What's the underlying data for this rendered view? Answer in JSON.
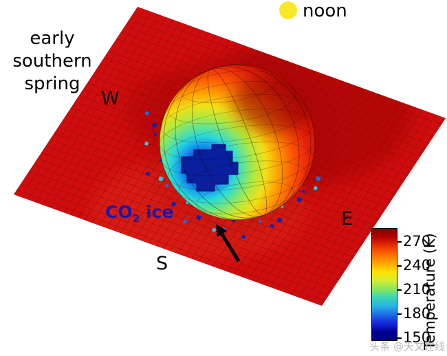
{
  "figure": {
    "season_lines": [
      "early",
      "southern",
      "spring"
    ],
    "noon_label": "noon",
    "directions": {
      "west": "W",
      "east": "E",
      "south": "S"
    },
    "co2": {
      "prefix": "CO",
      "sub": "2",
      "suffix": " ice"
    }
  },
  "colorbar": {
    "label": "Temperature (K)",
    "tick_values": [
      270,
      240,
      210,
      180,
      150
    ],
    "range_min": 148,
    "range_max": 287,
    "colors": [
      "#800000",
      "#b40000",
      "#e83200",
      "#ff6a00",
      "#ffa500",
      "#ffe000",
      "#d7ee32",
      "#8ce65a",
      "#3cd6b4",
      "#28b4e6",
      "#1e6ee6",
      "#1428dc",
      "#000096",
      "#00007f"
    ]
  },
  "watermark": {
    "text": "头条 @天文在线"
  },
  "chart_data": {
    "type": "heatmap",
    "title": "",
    "scene": "3D thermal-model surface: hemispherical dome on flat red terrain, colored by surface temperature",
    "season_annotation": "early southern spring",
    "time_annotation": "noon",
    "direction_labels": [
      "W",
      "E",
      "S"
    ],
    "feature_annotation": "CO2 ice",
    "colorbar": {
      "label": "Temperature (K)",
      "ticks": [
        270,
        240,
        210,
        180,
        150
      ],
      "range": [
        148,
        287
      ],
      "colormap": "jet",
      "position": "right"
    },
    "regions": [
      {
        "name": "surrounding flat terrain",
        "approx_temperature_K": 265
      },
      {
        "name": "dome sunlit (noon-facing) side",
        "approx_temperature_K": 272
      },
      {
        "name": "dome shaded south-west rim",
        "approx_temperature_K": 190
      },
      {
        "name": "CO2 ice patch (dark blue, arrowed)",
        "approx_temperature_K": 150
      }
    ]
  }
}
